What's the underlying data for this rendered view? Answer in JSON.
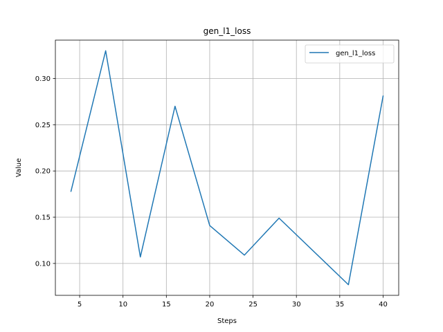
{
  "chart_data": {
    "type": "line",
    "title": "gen_l1_loss",
    "xlabel": "Steps",
    "ylabel": "Value",
    "xlim": [
      2.2,
      41.8
    ],
    "ylim": [
      0.0655,
      0.3415
    ],
    "xticks": [
      5,
      10,
      15,
      20,
      25,
      30,
      35,
      40
    ],
    "yticks": [
      0.1,
      0.15,
      0.2,
      0.25,
      0.3
    ],
    "xtick_labels": [
      "5",
      "10",
      "15",
      "20",
      "25",
      "30",
      "35",
      "40"
    ],
    "ytick_labels": [
      "0.10",
      "0.15",
      "0.20",
      "0.25",
      "0.30"
    ],
    "grid": true,
    "legend_position": "upper right",
    "series": [
      {
        "name": "gen_l1_loss",
        "color": "#1f77b4",
        "x": [
          4,
          8,
          12,
          16,
          20,
          24,
          28,
          36,
          40
        ],
        "y": [
          0.178,
          0.33,
          0.107,
          0.27,
          0.141,
          0.109,
          0.149,
          0.077,
          0.281
        ]
      }
    ]
  }
}
